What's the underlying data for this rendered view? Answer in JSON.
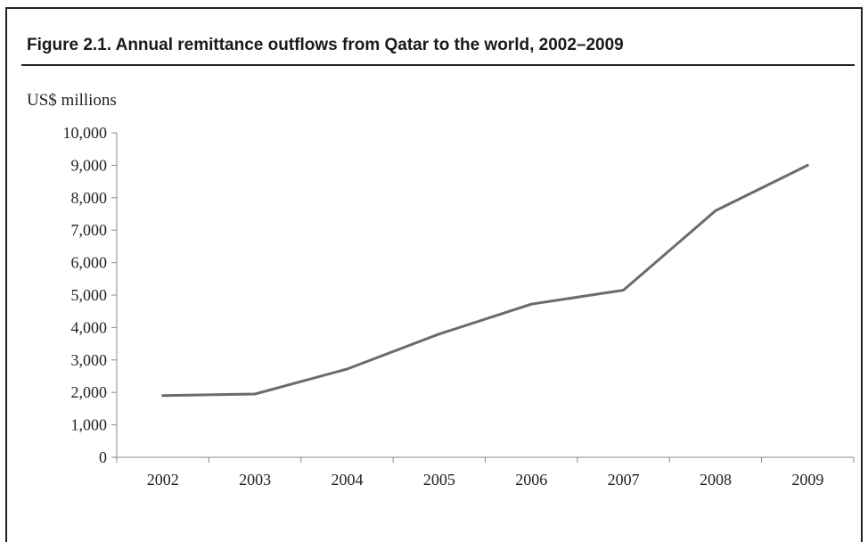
{
  "figure": {
    "title": "Figure 2.1. Annual remittance outflows from Qatar to the world, 2002–2009",
    "unit_label": "US$ millions"
  },
  "chart_data": {
    "type": "line",
    "title": "Figure 2.1. Annual remittance outflows from Qatar to the world, 2002–2009",
    "xlabel": "",
    "ylabel": "US$ millions",
    "categories": [
      "2002",
      "2003",
      "2004",
      "2005",
      "2006",
      "2007",
      "2008",
      "2009"
    ],
    "series": [
      {
        "values": [
          1900,
          1950,
          2720,
          3800,
          4720,
          5150,
          7600,
          9000
        ]
      }
    ],
    "ylim": [
      0,
      10000
    ],
    "yticks": [
      0,
      1000,
      2000,
      3000,
      4000,
      5000,
      6000,
      7000,
      8000,
      9000,
      10000
    ],
    "ytick_labels": [
      "0",
      "1,000",
      "2,000",
      "3,000",
      "4,000",
      "5,000",
      "6,000",
      "7,000",
      "8,000",
      "9,000",
      "10,000"
    ],
    "grid": false,
    "legend": "none",
    "line_color": "#6b6b6b"
  }
}
